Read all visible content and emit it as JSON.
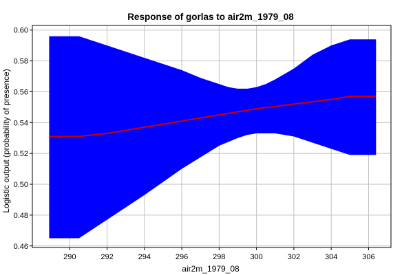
{
  "chart_data": {
    "type": "area",
    "title": "Response of gorlas to air2m_1979_08",
    "xlabel": "air2m_1979_08",
    "ylabel": "Logistic output (probability of presence)",
    "xlim": [
      288.0,
      307.2
    ],
    "ylim": [
      0.459,
      0.603
    ],
    "x_ticks": [
      290,
      292,
      294,
      296,
      298,
      300,
      302,
      304,
      306
    ],
    "y_ticks": [
      0.46,
      0.48,
      0.5,
      0.52,
      0.54,
      0.56,
      0.58,
      0.6
    ],
    "x_tick_labels": [
      "290",
      "292",
      "294",
      "296",
      "298",
      "300",
      "302",
      "304",
      "306"
    ],
    "y_tick_labels": [
      "0.46",
      "0.48",
      "0.50",
      "0.52",
      "0.54",
      "0.56",
      "0.58",
      "0.60"
    ],
    "grid": true,
    "series": [
      {
        "role": "mean",
        "color": "#cc0000",
        "x": [
          288.9,
          290.5,
          292,
          294,
          296,
          298,
          300,
          302,
          304,
          305.0,
          306.4
        ],
        "y": [
          0.531,
          0.531,
          0.533,
          0.537,
          0.541,
          0.545,
          0.549,
          0.552,
          0.555,
          0.557,
          0.557
        ]
      },
      {
        "role": "upper",
        "color": "#0000ff",
        "x": [
          288.9,
          290.5,
          292,
          294,
          296,
          297,
          298,
          298.5,
          299,
          299.5,
          300,
          300.5,
          301,
          302,
          303,
          304,
          305.0,
          306.4
        ],
        "y": [
          0.596,
          0.596,
          0.59,
          0.582,
          0.574,
          0.569,
          0.565,
          0.563,
          0.562,
          0.562,
          0.563,
          0.565,
          0.568,
          0.575,
          0.584,
          0.59,
          0.594,
          0.594
        ]
      },
      {
        "role": "lower",
        "color": "#0000ff",
        "x": [
          288.9,
          290.5,
          292,
          294,
          296,
          298,
          299,
          299.5,
          300,
          300.5,
          301,
          302,
          303,
          304,
          305.0,
          306.4
        ],
        "y": [
          0.465,
          0.465,
          0.477,
          0.493,
          0.51,
          0.525,
          0.53,
          0.532,
          0.533,
          0.533,
          0.533,
          0.531,
          0.527,
          0.523,
          0.519,
          0.519
        ]
      }
    ]
  }
}
